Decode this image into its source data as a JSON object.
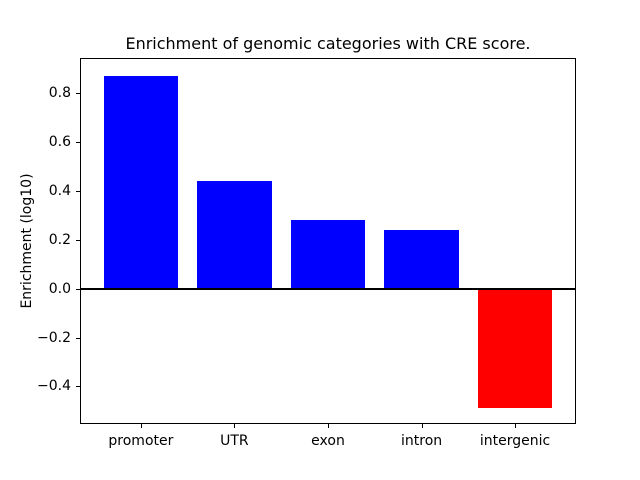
{
  "chart_data": {
    "type": "bar",
    "title": "Enrichment of genomic categories with CRE score.",
    "xlabel": "",
    "ylabel": "Enrichment (log10)",
    "categories": [
      "promoter",
      "UTR",
      "exon",
      "intron",
      "intergenic"
    ],
    "values": [
      0.87,
      0.44,
      0.28,
      0.24,
      -0.49
    ],
    "bar_colors": [
      "#0000ff",
      "#0000ff",
      "#0000ff",
      "#0000ff",
      "#ff0000"
    ],
    "positive_color": "#0000ff",
    "negative_color": "#ff0000",
    "ylim": [
      -0.55,
      0.94
    ],
    "yticks": [
      -0.4,
      -0.2,
      0.0,
      0.2,
      0.4,
      0.6,
      0.8
    ],
    "ytick_labels": [
      "−0.4",
      "−0.2",
      "0.0",
      "0.2",
      "0.4",
      "0.6",
      "0.8"
    ],
    "zero_line": true,
    "grid": false,
    "legend": null,
    "spine_color": "#000000",
    "background_color": "#ffffff"
  }
}
